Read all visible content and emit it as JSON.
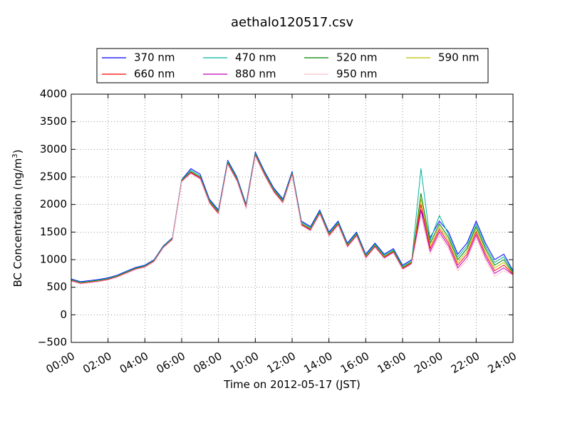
{
  "chart_data": {
    "type": "line",
    "title": "aethalo120517.csv",
    "xlabel": "Time on 2012-05-17 (JST)",
    "ylabel_main": "BC Concentration (ng/m",
    "ylabel_sup": "3",
    "ylabel_end": ")",
    "xlim": [
      0,
      24
    ],
    "ylim": [
      -500,
      4000
    ],
    "xticks": [
      0,
      2,
      4,
      6,
      8,
      10,
      12,
      14,
      16,
      18,
      20,
      22,
      24
    ],
    "xtick_labels": [
      "00:00",
      "02:00",
      "04:00",
      "06:00",
      "08:00",
      "10:00",
      "12:00",
      "14:00",
      "16:00",
      "18:00",
      "20:00",
      "22:00",
      "24:00"
    ],
    "yticks": [
      -500,
      0,
      500,
      1000,
      1500,
      2000,
      2500,
      3000,
      3500,
      4000
    ],
    "ytick_labels": [
      "−500",
      "0",
      "500",
      "1000",
      "1500",
      "2000",
      "2500",
      "3000",
      "3500",
      "4000"
    ],
    "grid": true,
    "legend_position": "top",
    "x_hours": [
      0.0,
      0.5,
      1.0,
      1.5,
      2.0,
      2.5,
      3.0,
      3.5,
      4.0,
      4.5,
      5.0,
      5.5,
      6.0,
      6.5,
      7.0,
      7.5,
      8.0,
      8.5,
      9.0,
      9.5,
      10.0,
      10.5,
      11.0,
      11.5,
      12.0,
      12.5,
      13.0,
      13.5,
      14.0,
      14.5,
      15.0,
      15.5,
      16.0,
      16.5,
      17.0,
      17.5,
      18.0,
      18.5,
      19.0,
      19.5,
      20.0,
      20.5,
      21.0,
      21.5,
      22.0,
      22.5,
      23.0,
      23.5,
      24.0
    ],
    "series": [
      {
        "name": "370 nm",
        "color": "#0000ff",
        "values": [
          650,
          600,
          620,
          640,
          670,
          720,
          790,
          860,
          900,
          1000,
          1250,
          1400,
          2450,
          2650,
          2550,
          2100,
          1900,
          2800,
          2500,
          2000,
          2950,
          2600,
          2300,
          2100,
          2600,
          1700,
          1600,
          1900,
          1500,
          1700,
          1300,
          1500,
          1100,
          1300,
          1100,
          1200,
          900,
          1000,
          1900,
          1400,
          1700,
          1500,
          1100,
          1300,
          1700,
          1300,
          1000,
          1100,
          800
        ]
      },
      {
        "name": "470 nm",
        "color": "#00b3a0",
        "values": [
          640,
          590,
          610,
          630,
          660,
          710,
          780,
          850,
          890,
          990,
          1240,
          1390,
          2440,
          2620,
          2520,
          2080,
          1880,
          2780,
          2480,
          1980,
          2930,
          2580,
          2280,
          2080,
          2580,
          1680,
          1580,
          1880,
          1480,
          1680,
          1280,
          1480,
          1080,
          1280,
          1080,
          1180,
          880,
          980,
          2650,
          1350,
          1800,
          1450,
          1050,
          1250,
          1650,
          1250,
          950,
          1050,
          780
        ]
      },
      {
        "name": "520 nm",
        "color": "#008000",
        "values": [
          630,
          580,
          600,
          620,
          650,
          700,
          770,
          840,
          880,
          980,
          1230,
          1380,
          2430,
          2600,
          2500,
          2060,
          1860,
          2760,
          2460,
          1960,
          2910,
          2560,
          2260,
          2060,
          2560,
          1660,
          1560,
          1860,
          1460,
          1660,
          1260,
          1460,
          1060,
          1260,
          1060,
          1160,
          860,
          960,
          2200,
          1300,
          1650,
          1400,
          1000,
          1200,
          1600,
          1200,
          900,
          1000,
          760
        ]
      },
      {
        "name": "590 nm",
        "color": "#bfbf00",
        "values": [
          625,
          575,
          595,
          615,
          645,
          695,
          765,
          835,
          875,
          975,
          1225,
          1375,
          2425,
          2590,
          2490,
          2050,
          1850,
          2750,
          2450,
          1950,
          2900,
          2550,
          2250,
          2050,
          2550,
          1650,
          1550,
          1850,
          1450,
          1650,
          1250,
          1450,
          1050,
          1250,
          1050,
          1150,
          850,
          950,
          2100,
          1250,
          1600,
          1350,
          950,
          1150,
          1550,
          1150,
          850,
          950,
          750
        ]
      },
      {
        "name": "660 nm",
        "color": "#ff0000",
        "values": [
          620,
          570,
          590,
          610,
          640,
          690,
          760,
          830,
          870,
          970,
          1220,
          1370,
          2420,
          2580,
          2480,
          2040,
          1840,
          2740,
          2440,
          1940,
          2890,
          2540,
          2240,
          2040,
          2540,
          1640,
          1540,
          1840,
          1440,
          1640,
          1240,
          1440,
          1040,
          1240,
          1040,
          1140,
          840,
          940,
          2000,
          1200,
          1550,
          1300,
          900,
          1100,
          1500,
          1100,
          800,
          900,
          740
        ]
      },
      {
        "name": "880 nm",
        "color": "#bf00bf",
        "values": [
          615,
          565,
          585,
          605,
          635,
          685,
          755,
          825,
          865,
          965,
          1215,
          1365,
          2415,
          2570,
          2470,
          2030,
          1830,
          2730,
          2430,
          1930,
          2880,
          2530,
          2230,
          2030,
          2530,
          1630,
          1530,
          1830,
          1430,
          1630,
          1230,
          1430,
          1030,
          1230,
          1030,
          1130,
          830,
          930,
          1900,
          1150,
          1500,
          1250,
          850,
          1050,
          1450,
          1050,
          750,
          850,
          730
        ]
      },
      {
        "name": "950 nm",
        "color": "#ffc0cb",
        "values": [
          610,
          560,
          580,
          600,
          630,
          680,
          750,
          820,
          860,
          960,
          1210,
          1360,
          2410,
          2560,
          2460,
          2020,
          1820,
          2720,
          2420,
          1920,
          2870,
          2520,
          2220,
          2020,
          2520,
          1620,
          1520,
          1820,
          1420,
          1620,
          1220,
          1420,
          1020,
          1220,
          1020,
          1120,
          820,
          920,
          1800,
          1100,
          1450,
          1200,
          800,
          1000,
          1400,
          1000,
          700,
          800,
          720
        ]
      }
    ]
  }
}
